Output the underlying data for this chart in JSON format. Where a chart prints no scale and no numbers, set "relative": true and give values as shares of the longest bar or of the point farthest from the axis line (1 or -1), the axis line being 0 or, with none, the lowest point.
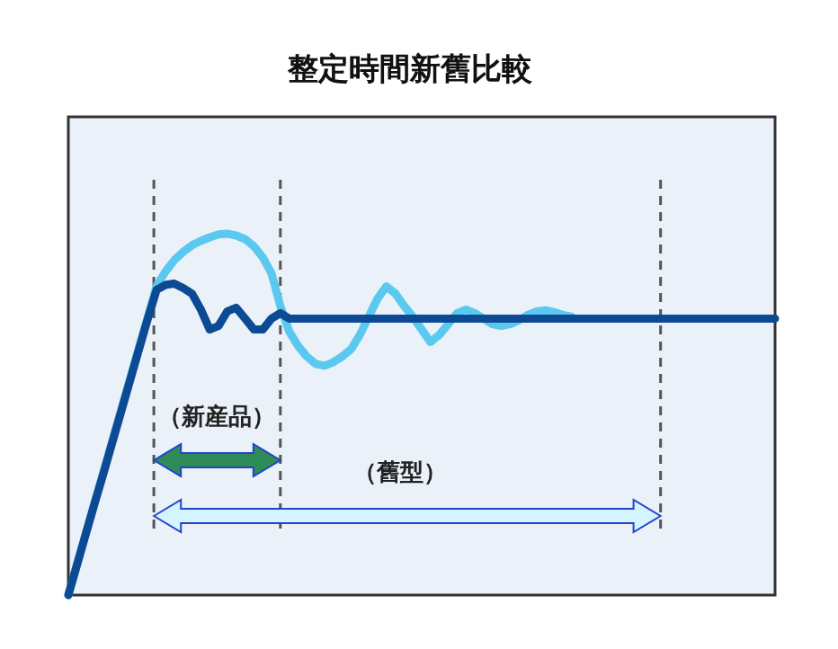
{
  "chart_data": {
    "type": "line",
    "title": "整定時間新舊比較",
    "relative": true,
    "line_style": "solid",
    "categories": [
      null,
      null,
      null,
      null,
      null,
      null,
      null,
      null,
      null,
      null,
      null,
      null,
      null,
      null,
      null,
      null,
      null,
      null,
      null,
      null,
      null,
      null,
      null,
      null,
      null,
      null,
      null,
      null,
      null,
      null,
      null,
      null,
      null,
      null,
      null,
      null,
      null,
      null,
      null,
      null,
      null,
      null,
      null,
      null,
      null,
      null,
      null,
      null,
      null,
      null,
      null,
      null,
      null,
      null,
      null,
      null,
      null,
      null,
      null,
      null,
      null,
      null,
      null,
      null,
      null,
      null,
      null,
      null,
      null,
      null,
      null,
      null,
      null,
      null,
      null,
      null,
      null,
      null,
      null,
      null,
      null
    ],
    "series": [
      {
        "color": "#5bc8f0",
        "values": [
          0,
          0.086,
          0.172,
          0.258,
          0.344,
          0.43,
          0.515,
          0.6,
          0.686,
          0.77,
          0.855,
          0.895,
          0.927,
          0.95,
          0.968,
          0.98,
          0.99,
          0.998,
          1.0,
          0.995,
          0.985,
          0.965,
          0.935,
          0.89,
          0.8,
          0.73,
          0.69,
          0.66,
          0.64,
          0.635,
          0.645,
          0.66,
          0.68,
          0.72,
          0.77,
          0.82,
          0.854,
          0.835,
          0.8,
          0.77,
          0.735,
          0.7,
          0.72,
          0.75,
          0.78,
          0.79,
          0.78,
          0.765,
          0.75,
          0.745,
          0.75,
          0.76,
          0.775,
          0.785,
          0.788,
          0.783,
          0.775,
          0.77,
          null,
          null,
          null,
          null,
          null,
          null,
          null,
          null,
          null,
          null,
          null,
          null,
          null,
          null,
          null,
          null,
          null,
          null,
          null,
          null,
          null,
          null,
          null
        ]
      },
      {
        "color": "#0d4a94",
        "values": [
          0,
          0.085,
          0.17,
          0.255,
          0.34,
          0.425,
          0.51,
          0.595,
          0.68,
          0.765,
          0.845,
          0.858,
          0.862,
          0.85,
          0.834,
          0.79,
          0.735,
          0.745,
          0.785,
          0.795,
          0.765,
          0.735,
          0.735,
          0.765,
          0.78,
          0.765,
          0.765,
          0.765,
          0.765,
          0.765,
          0.765,
          0.765,
          0.765,
          0.765,
          0.765,
          0.765,
          0.765,
          0.765,
          0.765,
          0.765,
          0.765,
          0.765,
          0.765,
          0.765,
          0.765,
          0.765,
          0.765,
          0.765,
          0.765,
          0.765,
          0.765,
          0.765,
          0.765,
          0.765,
          0.765,
          0.765,
          0.765,
          0.765,
          0.765,
          0.765,
          0.765,
          0.765,
          0.765,
          0.765,
          0.765,
          0.765,
          0.765,
          0.765,
          0.765,
          0.765,
          0.765,
          0.765,
          0.765,
          0.765,
          0.765,
          0.765,
          0.765,
          0.765,
          0.765,
          0.765,
          0.765
        ]
      }
    ],
    "annotations": [
      "（新産品）",
      "（舊型）"
    ]
  }
}
